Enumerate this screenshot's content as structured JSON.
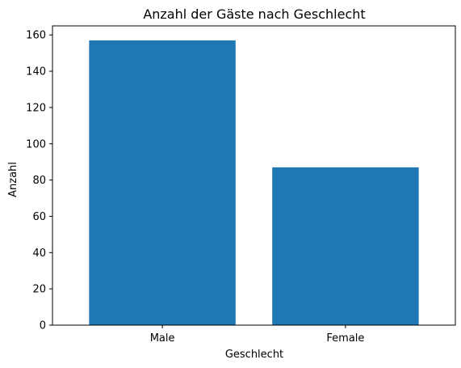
{
  "chart_data": {
    "type": "bar",
    "title": "Anzahl der Gäste nach Geschlecht",
    "xlabel": "Geschlecht",
    "ylabel": "Anzahl",
    "categories": [
      "Male",
      "Female"
    ],
    "values": [
      157,
      87
    ],
    "ylim": [
      0,
      165
    ],
    "yticks": [
      0,
      20,
      40,
      60,
      80,
      100,
      120,
      140,
      160
    ],
    "bar_color": "#1f77b4",
    "grid": false,
    "legend": "none"
  }
}
